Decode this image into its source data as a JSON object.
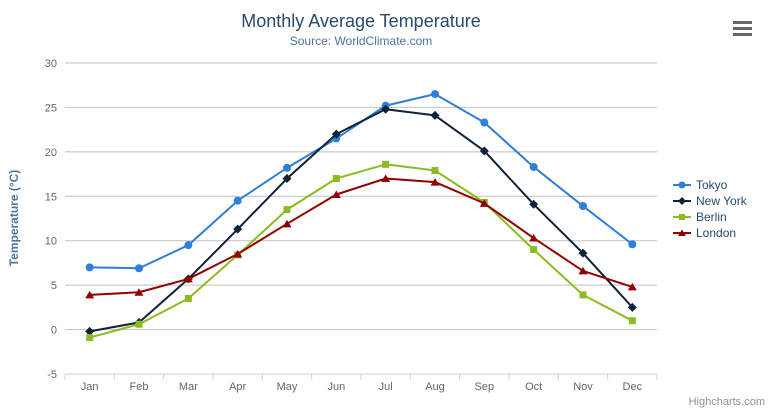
{
  "chart_data": {
    "type": "line",
    "title": "Monthly Average Temperature",
    "subtitle": "Source: WorldClimate.com",
    "xlabel": "",
    "ylabel": "Temperature (°C)",
    "ylim": [
      -5,
      30
    ],
    "y_ticks": [
      30,
      25,
      20,
      15,
      10,
      5,
      0,
      -5
    ],
    "grid": true,
    "legend_position": "right",
    "categories": [
      "Jan",
      "Feb",
      "Mar",
      "Apr",
      "May",
      "Jun",
      "Jul",
      "Aug",
      "Sep",
      "Oct",
      "Nov",
      "Dec"
    ],
    "series": [
      {
        "name": "Tokyo",
        "color": "#2f7ed8",
        "marker": "circle",
        "values": [
          7.0,
          6.9,
          9.5,
          14.5,
          18.2,
          21.5,
          25.2,
          26.5,
          23.3,
          18.3,
          13.9,
          9.6
        ]
      },
      {
        "name": "New York",
        "color": "#0d233a",
        "marker": "diamond",
        "values": [
          -0.2,
          0.8,
          5.7,
          11.3,
          17.0,
          22.0,
          24.8,
          24.1,
          20.1,
          14.1,
          8.6,
          2.5
        ]
      },
      {
        "name": "Berlin",
        "color": "#8bbc21",
        "marker": "square",
        "values": [
          -0.9,
          0.6,
          3.5,
          8.4,
          13.5,
          17.0,
          18.6,
          17.9,
          14.3,
          9.0,
          3.9,
          1.0
        ]
      },
      {
        "name": "London",
        "color": "#910000",
        "marker": "triangle",
        "values": [
          3.9,
          4.2,
          5.7,
          8.5,
          11.9,
          15.2,
          17.0,
          16.6,
          14.2,
          10.3,
          6.6,
          4.8
        ]
      }
    ]
  },
  "credits_label": "Highcharts.com",
  "icons": {
    "export_menu": "hamburger-icon"
  },
  "colors": {
    "grid": "#c0c0c0",
    "axis_line": "#c0d0e0",
    "tick_text": "#666666",
    "title_text": "#274b6d",
    "subtitle_text": "#4d759e",
    "axis_title_text": "#4d759e",
    "legend_text": "#274b6d",
    "credits_text": "#909090",
    "menu_icon": "#666666"
  }
}
